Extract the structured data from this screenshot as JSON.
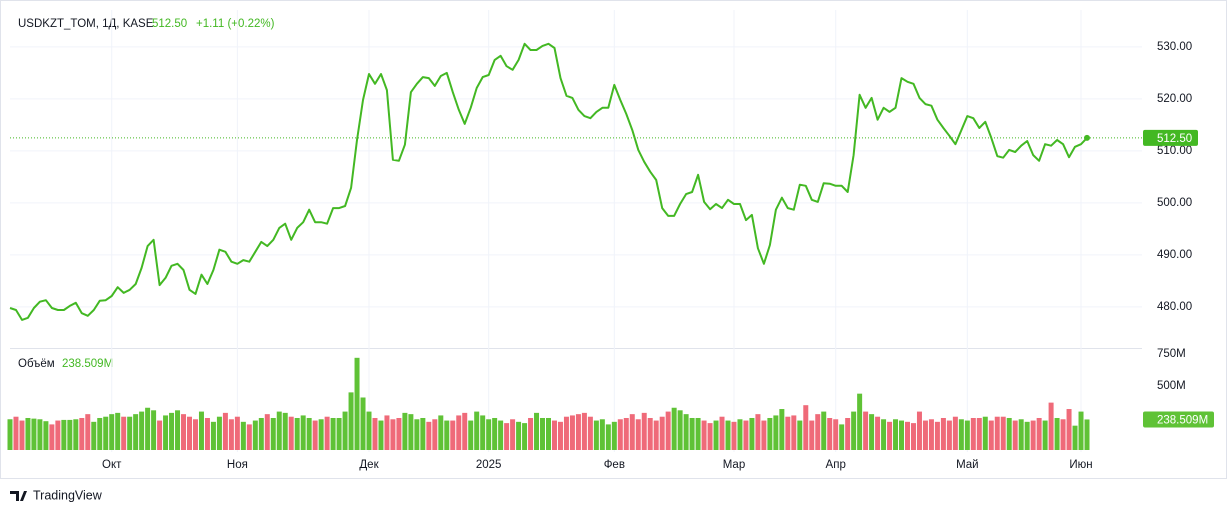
{
  "brand": "TradingView",
  "chart_data": [
    {
      "type": "line",
      "symbol": "USDKZT_TOM, 1Д, KASE",
      "last": "512.50",
      "change": "+1.11 (+0.22%)",
      "color": "#43b823",
      "grid": true,
      "xlim": [
        0,
        180
      ],
      "xticks": [
        {
          "value": 17,
          "label": "Окт"
        },
        {
          "value": 38,
          "label": "Ноя"
        },
        {
          "value": 60,
          "label": "Дек"
        },
        {
          "value": 80,
          "label": "2025"
        },
        {
          "value": 101,
          "label": "Фев"
        },
        {
          "value": 121,
          "label": "Мар"
        },
        {
          "value": 138,
          "label": "Апр"
        },
        {
          "value": 160,
          "label": "Май"
        },
        {
          "value": 179,
          "label": "Июн"
        }
      ],
      "ylim": [
        472.1,
        537.1
      ],
      "yticks": [
        {
          "value": 480,
          "label": "480.00"
        },
        {
          "value": 490,
          "label": "490.00"
        },
        {
          "value": 500,
          "label": "500.00"
        },
        {
          "value": 510,
          "label": "510.00"
        },
        {
          "value": 520,
          "label": "520.00"
        },
        {
          "value": 530,
          "label": "530.00"
        }
      ],
      "values": [
        479.8,
        479.4,
        477.5,
        477.9,
        479.8,
        481.0,
        481.3,
        479.8,
        479.4,
        479.4,
        480.2,
        480.8,
        478.8,
        478.3,
        479.4,
        481.2,
        481.3,
        482.1,
        483.8,
        482.7,
        483.3,
        484.4,
        487.5,
        491.7,
        492.9,
        484.2,
        485.6,
        487.9,
        488.3,
        487.1,
        483.3,
        482.5,
        486.2,
        484.4,
        487.1,
        491.0,
        490.6,
        488.7,
        488.3,
        489.0,
        488.7,
        490.6,
        492.5,
        491.7,
        492.9,
        495.2,
        496.0,
        492.9,
        495.2,
        496.3,
        498.7,
        496.3,
        496.3,
        496.0,
        499.0,
        499.0,
        499.4,
        502.9,
        512.1,
        519.8,
        524.8,
        522.9,
        524.8,
        521.7,
        508.3,
        508.1,
        511.2,
        521.3,
        522.9,
        524.2,
        524.0,
        522.5,
        524.4,
        525.0,
        521.3,
        517.9,
        515.2,
        518.3,
        522.1,
        524.2,
        524.6,
        527.5,
        528.3,
        526.3,
        525.6,
        527.5,
        530.6,
        529.4,
        529.4,
        530.2,
        530.6,
        529.8,
        524.0,
        520.6,
        520.2,
        517.9,
        516.7,
        516.3,
        517.5,
        518.3,
        518.3,
        522.7,
        519.8,
        517.1,
        514.0,
        510.2,
        507.9,
        506.0,
        504.4,
        499.0,
        497.5,
        497.5,
        499.8,
        501.7,
        502.1,
        505.4,
        500.2,
        498.8,
        499.8,
        499.0,
        500.6,
        499.8,
        499.8,
        496.7,
        497.7,
        491.3,
        488.3,
        491.9,
        498.7,
        501.0,
        499.0,
        498.7,
        503.5,
        503.3,
        500.6,
        500.2,
        503.8,
        503.7,
        503.3,
        503.3,
        502.1,
        509.2,
        520.8,
        518.3,
        520.2,
        516.0,
        518.3,
        517.5,
        518.3,
        524.0,
        523.3,
        522.9,
        520.2,
        519.0,
        518.7,
        516.0,
        514.4,
        512.9,
        511.3,
        514.0,
        516.7,
        516.3,
        514.4,
        515.6,
        512.5,
        509.0,
        508.7,
        510.2,
        509.8,
        511.0,
        511.9,
        509.2,
        508.1,
        511.3,
        511.0,
        512.1,
        511.3,
        508.8,
        510.8,
        511.3,
        512.5
      ]
    },
    {
      "type": "bar",
      "title": "Объём",
      "last": "238.509M",
      "up_color": "#5fc236",
      "down_color": "#ef6a79",
      "ylim": [
        0,
        781
      ],
      "yticks": [
        {
          "value": 500,
          "label": "500M"
        },
        {
          "value": 750,
          "label": "750M"
        }
      ],
      "values": [
        240,
        260,
        230,
        250,
        245,
        240,
        225,
        200,
        230,
        235,
        235,
        240,
        250,
        280,
        220,
        250,
        260,
        280,
        290,
        260,
        260,
        280,
        300,
        330,
        310,
        230,
        270,
        290,
        310,
        280,
        260,
        240,
        300,
        250,
        220,
        260,
        290,
        240,
        260,
        220,
        200,
        230,
        250,
        280,
        250,
        300,
        290,
        260,
        250,
        270,
        250,
        230,
        240,
        260,
        250,
        250,
        300,
        450,
        720,
        410,
        300,
        250,
        230,
        270,
        240,
        250,
        290,
        280,
        240,
        250,
        220,
        240,
        270,
        230,
        230,
        270,
        290,
        230,
        300,
        270,
        240,
        250,
        230,
        210,
        240,
        220,
        210,
        250,
        290,
        250,
        250,
        230,
        220,
        260,
        270,
        280,
        290,
        260,
        230,
        240,
        200,
        220,
        240,
        250,
        280,
        240,
        290,
        250,
        230,
        260,
        300,
        330,
        310,
        280,
        250,
        250,
        230,
        210,
        230,
        260,
        230,
        220,
        240,
        230,
        250,
        280,
        230,
        250,
        270,
        320,
        260,
        270,
        230,
        350,
        230,
        280,
        300,
        250,
        240,
        200,
        250,
        300,
        440,
        300,
        280,
        260,
        240,
        220,
        240,
        230,
        220,
        210,
        300,
        230,
        240,
        220,
        250,
        230,
        260,
        240,
        230,
        250,
        250,
        260,
        230,
        260,
        260,
        250,
        230,
        240,
        220,
        230,
        250,
        230,
        370,
        250,
        240,
        320,
        190,
        300,
        238.509
      ]
    }
  ]
}
